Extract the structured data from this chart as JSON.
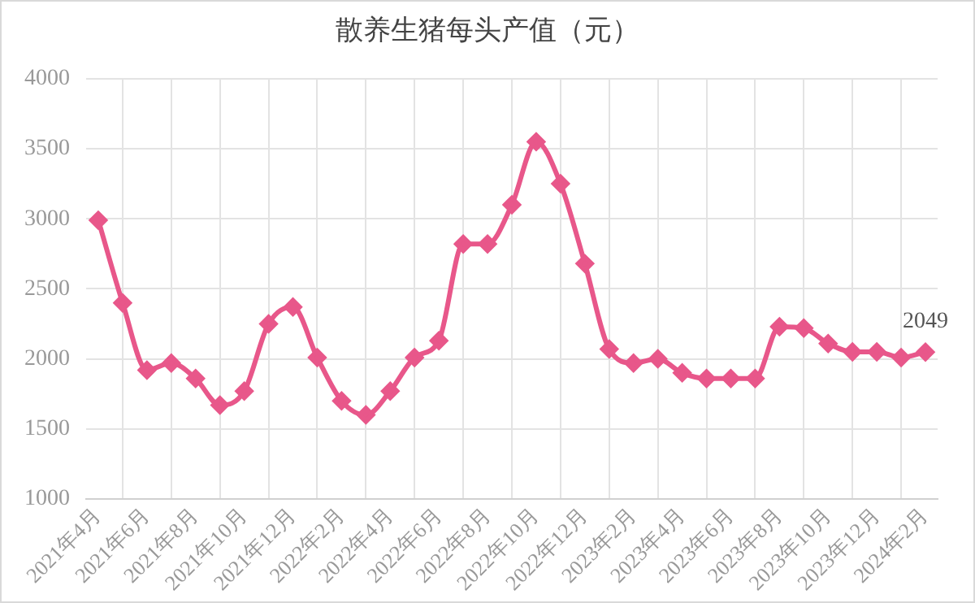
{
  "chart_data": {
    "type": "line",
    "title": "散养生猪每头产值（元）",
    "categories": [
      "2021年4月",
      null,
      "2021年6月",
      null,
      "2021年8月",
      null,
      "2021年10月",
      null,
      "2021年12月",
      null,
      "2022年2月",
      null,
      "2022年4月",
      null,
      "2022年6月",
      null,
      "2022年8月",
      null,
      "2022年10月",
      null,
      "2022年12月",
      null,
      "2023年2月",
      null,
      "2023年4月",
      null,
      "2023年6月",
      null,
      "2023年8月",
      null,
      "2023年10月",
      null,
      "2023年12月",
      null,
      "2024年2月"
    ],
    "series": [
      {
        "color": "#e8578a",
        "values": [
          2990,
          2400,
          1920,
          1970,
          1860,
          1670,
          1770,
          2250,
          2370,
          2010,
          1700,
          1600,
          1770,
          2010,
          2130,
          2820,
          2820,
          3100,
          3550,
          3250,
          2680,
          2070,
          1970,
          2000,
          1900,
          1860,
          1860,
          1860,
          2230,
          2220,
          2110,
          2050,
          2050,
          2010,
          2049
        ],
        "value_labels": [
          null,
          null,
          null,
          null,
          null,
          null,
          null,
          null,
          null,
          null,
          null,
          null,
          null,
          null,
          null,
          null,
          null,
          null,
          null,
          null,
          null,
          null,
          null,
          null,
          null,
          null,
          null,
          null,
          null,
          null,
          null,
          null,
          null,
          null,
          "2049"
        ]
      }
    ],
    "ylim": [
      1000,
      4000
    ],
    "yticks": [
      1000,
      1500,
      2000,
      2500,
      3000,
      3500,
      4000
    ],
    "grid": true,
    "marker": "diamond",
    "line_style": "solid"
  }
}
